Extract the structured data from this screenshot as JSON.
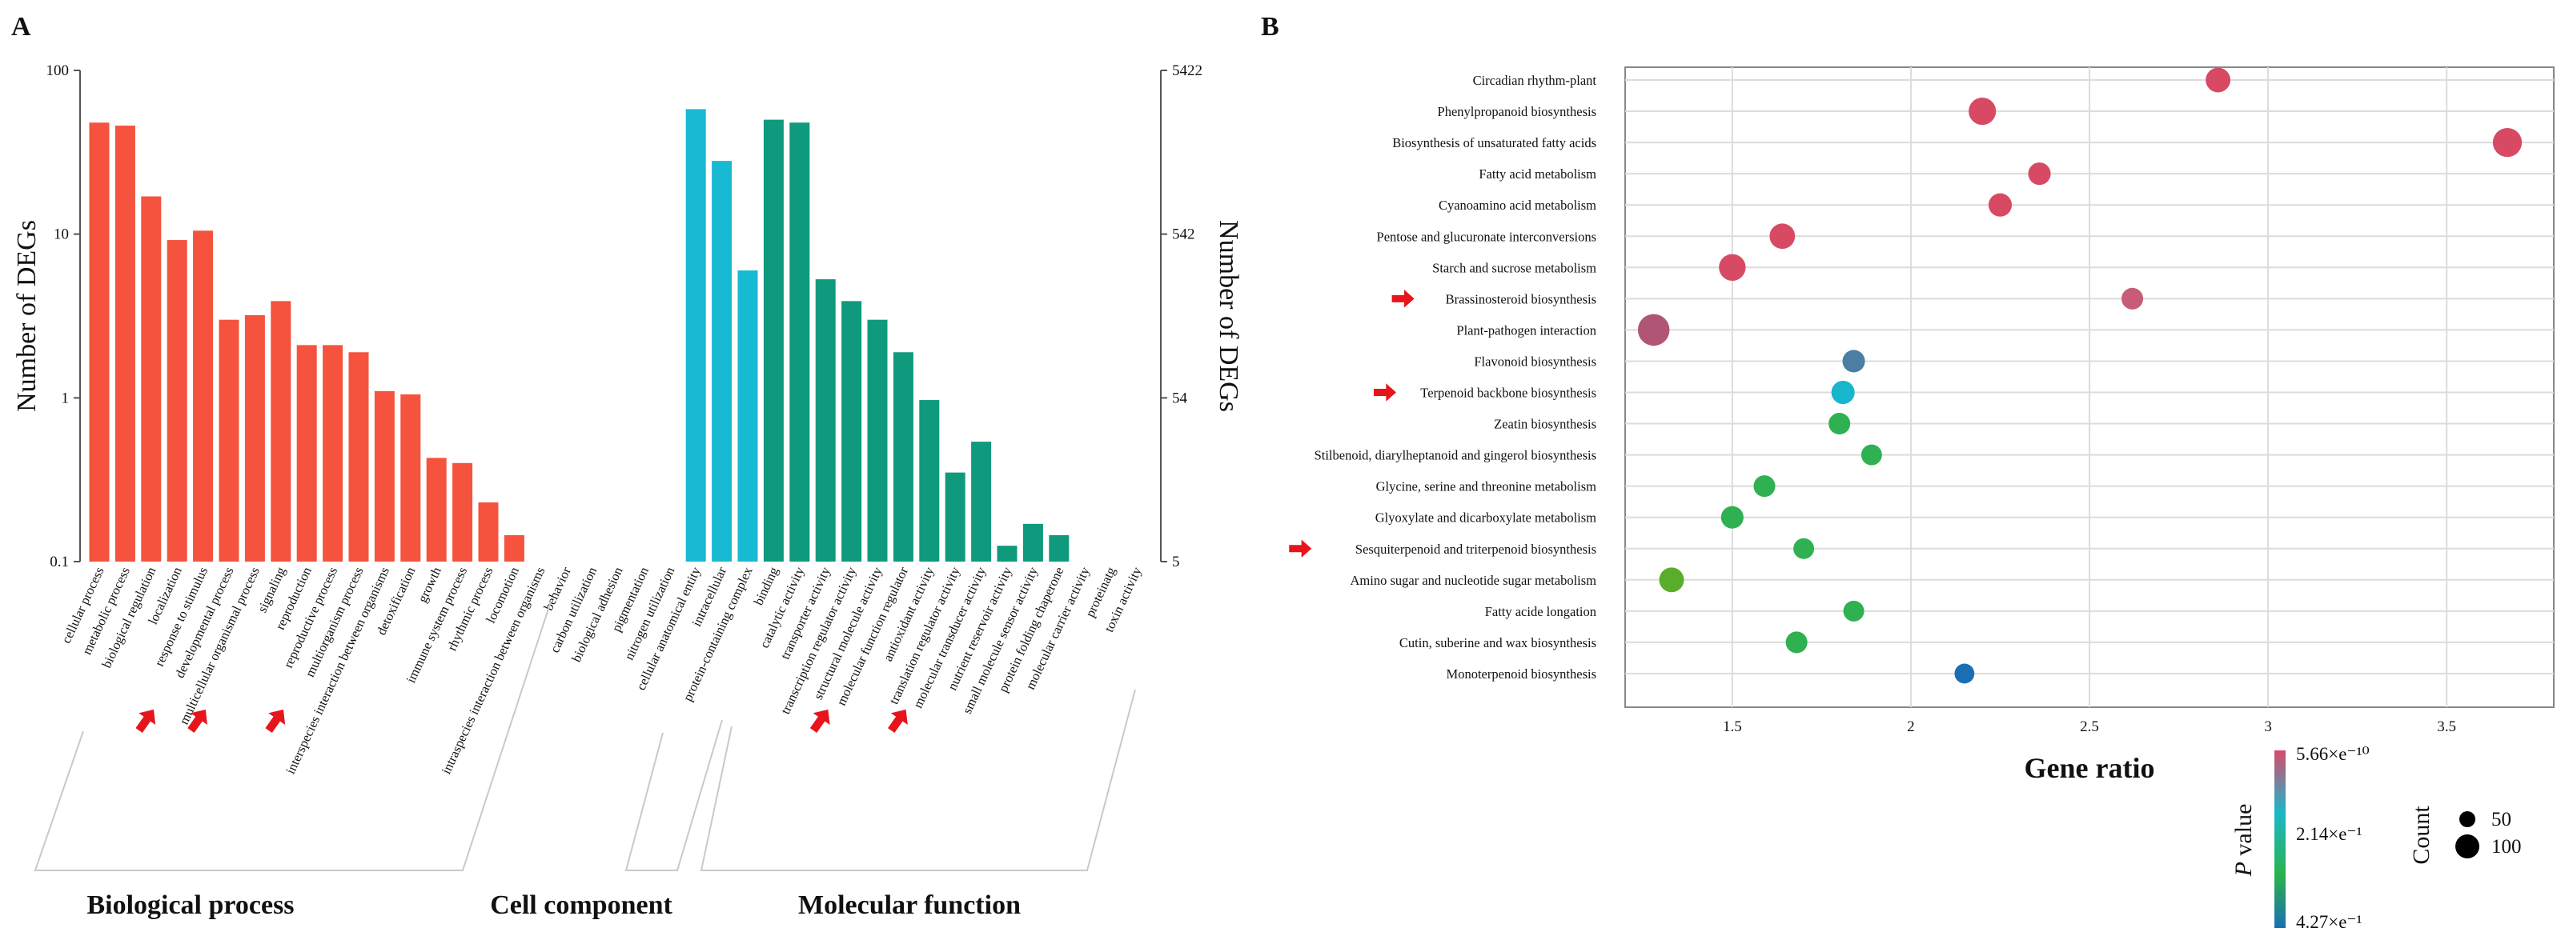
{
  "panel_a": {
    "label": "A",
    "group_labels": [
      "Biological process",
      "Cell component",
      "Molecular function"
    ]
  },
  "panel_b": {
    "label": "B",
    "size_legend_title": "Count",
    "size_legend_labels": [
      "50",
      "100"
    ],
    "color_legend_title_italic": "P",
    "color_legend_title_rest": " value",
    "color_legend_labels": [
      "5.66×e⁻¹⁰",
      "2.14×e⁻¹",
      "4.27×e⁻¹"
    ]
  },
  "colors": {
    "biological_process": "#f5533d",
    "cellular_component": "#18b9d2",
    "molecular_function": "#0f9a7d",
    "arrow": "#e8141c",
    "grid": "#dcdcdc"
  },
  "chart_data": [
    {
      "type": "bar",
      "title": "",
      "ylabel": "Number of DEGs",
      "ylabel_right": "Number of DEGs",
      "yscale": "log",
      "ylim": [
        0.1,
        100
      ],
      "yticks": [
        "100",
        "10",
        "1",
        "0.1"
      ],
      "yticks_right": [
        "5422",
        "542",
        "54",
        "5"
      ],
      "categories": [
        "cellular process",
        "metabolic process",
        "biological regulation",
        "localization",
        "response to stimulus",
        "developmental process",
        "multicellular organismal process",
        "signaling",
        "reproduction",
        "reproductive process",
        "multiorganism process",
        "interspecies interaction between organisms",
        "detoxification",
        "growth",
        "immune system process",
        "rhythmic process",
        "locomotion",
        "intraspecies interaction between organisms",
        "behavior",
        "carbon utilization",
        "biological adhesion",
        "pigmentation",
        "nitrogen utilization",
        "cellular anatomical entity",
        "intracellular",
        "protein-containing complex",
        "binding",
        "catalytic activity",
        "transporter activity",
        "transcription regulator activity",
        "structural molecule activity",
        "molecular function regulator",
        "antioxidant activity",
        "translation regulator activity",
        "molecular transducer activity",
        "nutrient reservoir activity",
        "small molecule sensor activity",
        "protein folding chaperone",
        "molecular carrier activity",
        "proteinatg",
        "toxin activity"
      ],
      "groups": [
        "BP",
        "BP",
        "BP",
        "BP",
        "BP",
        "BP",
        "BP",
        "BP",
        "BP",
        "BP",
        "BP",
        "BP",
        "BP",
        "BP",
        "BP",
        "BP",
        "BP",
        "BP",
        "BP",
        "BP",
        "BP",
        "BP",
        "BP",
        "CC",
        "CC",
        "CC",
        "MF",
        "MF",
        "MF",
        "MF",
        "MF",
        "MF",
        "MF",
        "MF",
        "MF",
        "MF",
        "MF",
        "MF",
        "MF",
        "MF",
        "MF"
      ],
      "values": [
        48,
        46,
        17,
        9.2,
        10.5,
        3.0,
        3.2,
        3.9,
        2.1,
        2.1,
        1.9,
        1.1,
        1.05,
        0.43,
        0.4,
        0.23,
        0.145,
        0,
        0,
        0,
        0,
        0,
        0,
        58,
        28,
        6,
        50,
        48,
        5.3,
        3.9,
        3.0,
        1.9,
        0.97,
        0.35,
        0.54,
        0.125,
        0.17,
        0.145,
        0,
        0,
        0
      ],
      "arrow_categories": [
        "biological regulation",
        "response to stimulus",
        "signaling",
        "transporter activity",
        "molecular function regulator"
      ]
    },
    {
      "type": "scatter",
      "title": "",
      "xlabel": "Gene ratio",
      "ylabel": "",
      "xlim": [
        1.2,
        3.8
      ],
      "xticks": [
        "1.5",
        "2",
        "2.5",
        "3",
        "3.5"
      ],
      "pathways": [
        "Circadian rhythm-plant",
        "Phenylpropanoid biosynthesis",
        "Biosynthesis of unsaturated fatty acids",
        "Fatty acid metabolism",
        "Cyanoamino acid metabolism",
        "Pentose and glucuronate interconversions",
        "Starch and sucrose metabolism",
        "Brassinosteroid biosynthesis",
        "Plant-pathogen interaction",
        "Flavonoid biosynthesis",
        "Terpenoid backbone biosynthesis",
        "Zeatin biosynthesis",
        "Stilbenoid, diarylheptanoid and gingerol biosynthesis",
        "Glycine, serine and threonine metabolism",
        "Glyoxylate and dicarboxylate metabolism",
        "Sesquiterpenoid and triterpenoid biosynthesis",
        "Amino sugar and nucleotide sugar metabolism",
        "Fatty acide longation",
        "Cutin, suberine and wax biosynthesis",
        "Monoterpenoid biosynthesis"
      ],
      "gene_ratio": [
        2.86,
        2.2,
        3.67,
        2.36,
        2.25,
        1.64,
        1.5,
        2.62,
        1.28,
        1.84,
        1.81,
        1.8,
        1.89,
        1.59,
        1.5,
        1.7,
        1.33,
        1.84,
        1.68,
        2.15
      ],
      "count": [
        60,
        80,
        95,
        45,
        50,
        65,
        75,
        40,
        120,
        45,
        50,
        40,
        35,
        40,
        45,
        35,
        60,
        35,
        40,
        30
      ],
      "colors": [
        "#d84a64",
        "#d84a64",
        "#d84a64",
        "#d84a64",
        "#d84a64",
        "#d84a64",
        "#d84a64",
        "#c85c78",
        "#b15577",
        "#4a7fa3",
        "#17b6cc",
        "#2fb152",
        "#2fb152",
        "#2fb152",
        "#2fb152",
        "#2fb152",
        "#5aad2a",
        "#2fb152",
        "#2fb152",
        "#1a6eb3"
      ],
      "arrow_pathways": [
        "Brassinosteroid biosynthesis",
        "Terpenoid backbone biosynthesis",
        "Sesquiterpenoid and triterpenoid biosynthesis"
      ],
      "color_scale": [
        "#d94a6a",
        "#1bb8c9",
        "#2bb24c",
        "#1a6eb3"
      ]
    }
  ]
}
